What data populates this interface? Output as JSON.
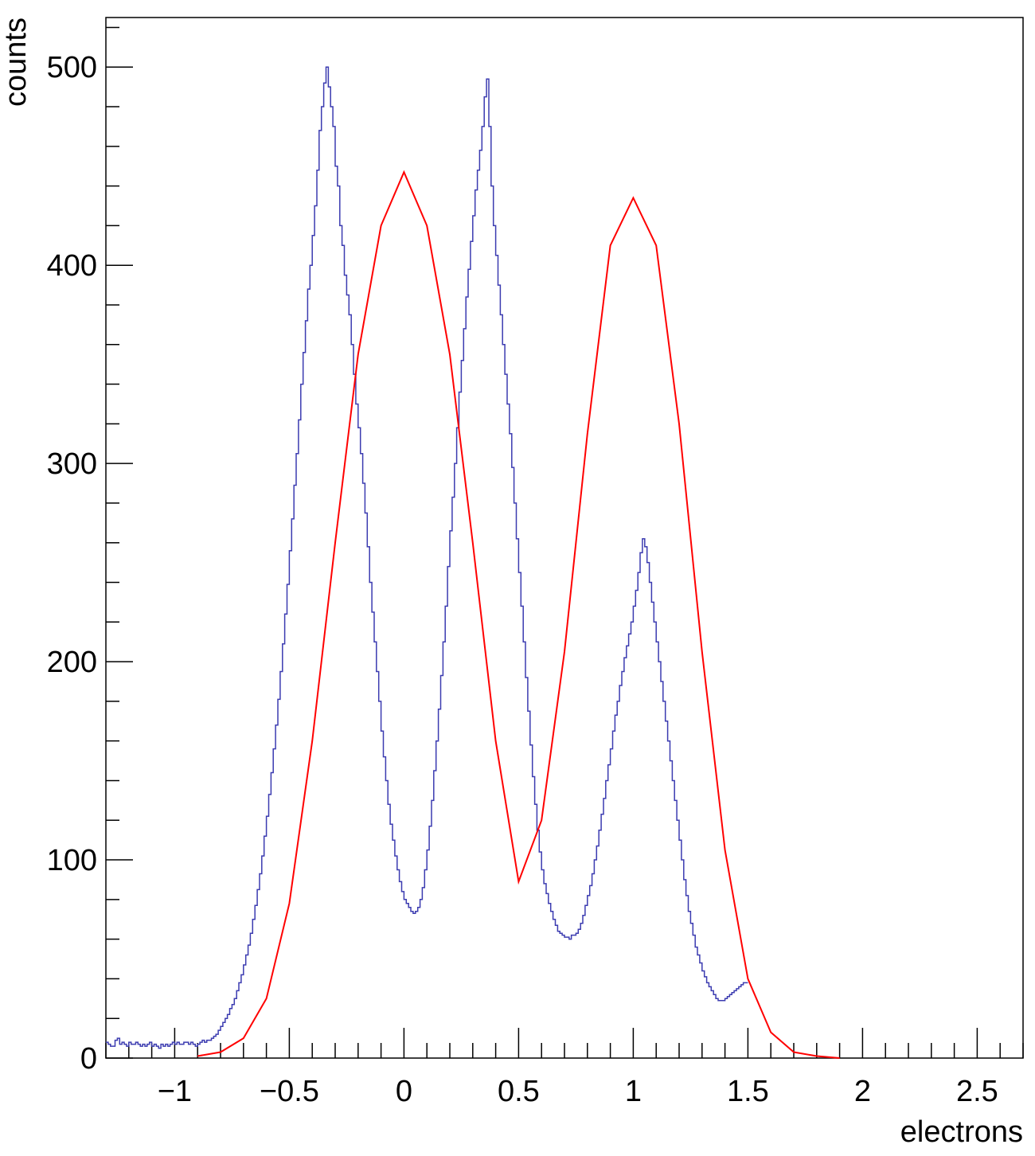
{
  "chart_data": {
    "type": "line",
    "title": "",
    "xlabel": "electrons",
    "ylabel": "counts",
    "xlim": [
      -1.3,
      2.7
    ],
    "ylim": [
      0,
      525
    ],
    "grid": false,
    "legend": "none",
    "x_ticks": [
      -1,
      -0.5,
      0,
      0.5,
      1,
      1.5,
      2,
      2.5
    ],
    "x_tick_labels": [
      "−1",
      "−0.5",
      "0",
      "0.5",
      "1",
      "1.5",
      "2",
      "2.5"
    ],
    "y_ticks": [
      0,
      100,
      200,
      300,
      400,
      500
    ],
    "y_tick_labels": [
      "0",
      "100",
      "200",
      "300",
      "400",
      "500"
    ],
    "series": [
      {
        "kind": "histogram",
        "color": "#3b3bb0",
        "bin_width": 0.01,
        "x_start": -1.3,
        "values": [
          8,
          7,
          6,
          6,
          9,
          10,
          7,
          8,
          7,
          6,
          8,
          7,
          7,
          8,
          7,
          6,
          7,
          6,
          7,
          8,
          6,
          7,
          6,
          5,
          7,
          6,
          7,
          6,
          7,
          8,
          7,
          8,
          7,
          7,
          8,
          8,
          7,
          8,
          7,
          6,
          7,
          8,
          9,
          8,
          9,
          9,
          10,
          11,
          12,
          14,
          16,
          18,
          20,
          22,
          25,
          27,
          30,
          34,
          38,
          42,
          47,
          52,
          57,
          63,
          70,
          77,
          85,
          93,
          102,
          112,
          122,
          133,
          144,
          156,
          168,
          181,
          195,
          209,
          224,
          239,
          256,
          272,
          289,
          305,
          322,
          340,
          356,
          372,
          388,
          400,
          415,
          430,
          448,
          468,
          480,
          492,
          500,
          490,
          480,
          470,
          450,
          440,
          420,
          410,
          395,
          385,
          375,
          360,
          345,
          330,
          318,
          305,
          290,
          275,
          258,
          240,
          225,
          210,
          195,
          180,
          165,
          152,
          140,
          128,
          118,
          110,
          102,
          95,
          89,
          84,
          80,
          78,
          76,
          74,
          73,
          74,
          76,
          80,
          86,
          95,
          105,
          117,
          130,
          145,
          160,
          176,
          193,
          210,
          228,
          248,
          266,
          283,
          300,
          318,
          336,
          352,
          368,
          384,
          398,
          412,
          425,
          438,
          448,
          458,
          470,
          485,
          494,
          470,
          440,
          420,
          405,
          390,
          375,
          360,
          345,
          330,
          315,
          298,
          280,
          262,
          245,
          228,
          210,
          192,
          175,
          158,
          142,
          128,
          115,
          104,
          95,
          88,
          83,
          78,
          74,
          70,
          67,
          64,
          63,
          62,
          61,
          61,
          60,
          62,
          62,
          63,
          65,
          68,
          72,
          77,
          82,
          87,
          93,
          100,
          107,
          115,
          123,
          131,
          140,
          148,
          156,
          165,
          173,
          180,
          188,
          195,
          202,
          208,
          214,
          220,
          228,
          236,
          245,
          255,
          262,
          258,
          250,
          240,
          230,
          220,
          210,
          200,
          190,
          180,
          170,
          160,
          150,
          140,
          130,
          120,
          110,
          100,
          90,
          82,
          74,
          68,
          62,
          56,
          52,
          48,
          44,
          41,
          38,
          36,
          34,
          32,
          30,
          29,
          29,
          29,
          30,
          31,
          32,
          33,
          34,
          35,
          36,
          37,
          38,
          38
        ]
      },
      {
        "kind": "fit",
        "color": "#ff0000",
        "x": [
          -0.9,
          -0.8,
          -0.7,
          -0.6,
          -0.5,
          -0.4,
          -0.3,
          -0.2,
          -0.1,
          0.0,
          0.1,
          0.2,
          0.3,
          0.4,
          0.5,
          0.6,
          0.7,
          0.8,
          0.9,
          1.0,
          1.1,
          1.2,
          1.3,
          1.4,
          1.5,
          1.6,
          1.7,
          1.8,
          1.9
        ],
        "y": [
          1,
          3,
          10,
          30,
          78,
          160,
          260,
          355,
          420,
          447,
          420,
          355,
          260,
          160,
          89,
          120,
          205,
          315,
          410,
          434,
          410,
          320,
          205,
          105,
          40,
          13,
          3,
          1,
          0
        ]
      }
    ]
  }
}
